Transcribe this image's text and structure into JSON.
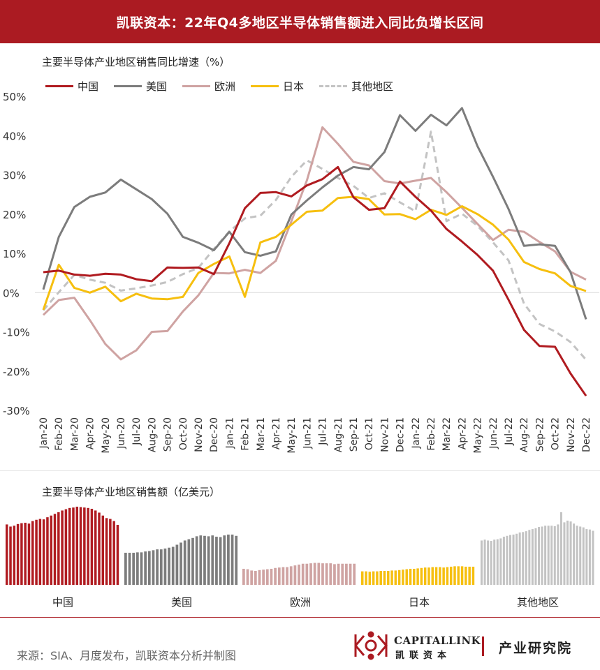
{
  "header": {
    "title": "凯联资本：22年Q4多地区半导体销售额进入同比负增长区间"
  },
  "top_chart": {
    "subtitle": "主要半导体产业地区销售同比增速（%）"
  },
  "bottom_chart": {
    "subtitle": "主要半导体产业地区销售额（亿美元）"
  },
  "footer": {
    "source": "来源：SIA、月度发布，凯联资本分析并制图",
    "logo_en": "CAPITALLINK",
    "logo_cn": "凯联资本",
    "brand_right": "产业研究院"
  },
  "colors": {
    "header_bg": "#ab1b22",
    "china": "#b01b20",
    "usa": "#7c7c7c",
    "europe": "#cfa3a2",
    "japan": "#f6bf0f",
    "others": "#c3c3c3"
  },
  "chart_data": [
    {
      "type": "line",
      "ylim": [
        -30,
        50
      ],
      "yticks": [
        "50%",
        "40%",
        "30%",
        "20%",
        "10%",
        "0%",
        "-10%",
        "-20%",
        "-30%"
      ],
      "ytick_values": [
        50,
        40,
        30,
        20,
        10,
        0,
        -10,
        -20,
        -30
      ],
      "categories": [
        "Jan-20",
        "Feb-20",
        "Mar-20",
        "Apr-20",
        "May-20",
        "Jun-20",
        "Jul-20",
        "Aug-20",
        "Sep-20",
        "Oct-20",
        "Nov-20",
        "Dec-20",
        "Jan-21",
        "Feb-21",
        "Mar-21",
        "Apr-21",
        "May-21",
        "Jun-21",
        "Jul-21",
        "Aug-21",
        "Sep-21",
        "Oct-21",
        "Nov-21",
        "Dec-21",
        "Jan-22",
        "Feb-22",
        "Mar-22",
        "Apr-22",
        "May-22",
        "Jun-22",
        "Jul-22",
        "Aug-22",
        "Sep-22",
        "Oct-22",
        "Nov-22",
        "Dec-22"
      ],
      "grid": "zero-line",
      "legend_position": "top-left",
      "series": [
        {
          "name": "中国",
          "style": "solid",
          "values": [
            5.2,
            5.6,
            4.6,
            4.3,
            4.8,
            4.6,
            3.4,
            2.9,
            6.4,
            6.3,
            6.4,
            4.7,
            12.6,
            21.5,
            25.4,
            25.6,
            24.5,
            27.3,
            28.9,
            32,
            24.3,
            21.1,
            21.5,
            28.3,
            24.4,
            20.9,
            16.2,
            13,
            9.6,
            5.6,
            -1.8,
            -9.5,
            -13.6,
            -13.8,
            -20.6,
            -26.3
          ]
        },
        {
          "name": "美国",
          "style": "solid",
          "values": [
            0.8,
            14.2,
            21.8,
            24.4,
            25.5,
            28.8,
            26.3,
            23.8,
            20.1,
            14.2,
            12.7,
            10.8,
            15.5,
            10.3,
            9.4,
            10.5,
            19.9,
            23.5,
            26.8,
            29.8,
            32,
            31.4,
            35.8,
            45.2,
            41.2,
            45.3,
            42.6,
            47,
            37.3,
            29.5,
            21.3,
            11.9,
            12.3,
            11.9,
            5.2,
            -6.8
          ]
        },
        {
          "name": "欧洲",
          "style": "solid",
          "values": [
            -5.7,
            -1.9,
            -1.3,
            -7,
            -13.1,
            -17,
            -14.7,
            -10,
            -9.8,
            -4.8,
            -0.7,
            5,
            4.9,
            5.8,
            5,
            8.1,
            18.2,
            28.6,
            42.1,
            37.9,
            33.3,
            32.4,
            28.4,
            27.8,
            28.5,
            29.2,
            25.6,
            21.6,
            17.5,
            13.4,
            16,
            15.5,
            12.9,
            10.5,
            5.3,
            3.3
          ]
        },
        {
          "name": "日本",
          "style": "solid",
          "values": [
            -4.4,
            7.1,
            1.2,
            0,
            1.5,
            -2.2,
            -0.3,
            -1.5,
            -1.7,
            -1.1,
            5,
            7.3,
            9.2,
            -1.1,
            12.8,
            14.2,
            17.3,
            20.6,
            20.9,
            24.1,
            24.4,
            23.8,
            19.9,
            20,
            18.7,
            21.1,
            19.8,
            22,
            20,
            17.3,
            13.5,
            7.8,
            6,
            4.9,
            1.7,
            0.4
          ]
        },
        {
          "name": "其他地区",
          "style": "dashed",
          "values": [
            -4.5,
            0.1,
            4.5,
            3.3,
            2.5,
            0.5,
            1.1,
            1.8,
            2.7,
            4.7,
            6.3,
            11.1,
            15.6,
            18.9,
            19.6,
            23.6,
            29.5,
            33.7,
            31.5,
            29.2,
            27.2,
            24.1,
            25.3,
            23,
            20.7,
            41,
            18.2,
            20.1,
            17,
            12.8,
            8.2,
            -2.8,
            -8,
            -9.9,
            -12.6,
            -17.1
          ]
        }
      ]
    },
    {
      "type": "bar",
      "ylim": [
        0,
        185
      ],
      "groups": [
        {
          "name": "中国",
          "values": [
            143,
            138,
            140,
            144,
            146,
            147,
            145,
            151,
            154,
            156,
            155,
            160,
            164,
            168,
            172,
            176,
            179,
            182,
            183,
            185,
            184,
            183,
            182,
            180,
            176,
            171,
            164,
            158,
            156,
            151,
            142
          ]
        },
        {
          "name": "美国",
          "values": [
            76,
            76,
            76,
            77,
            77,
            79,
            80,
            82,
            84,
            84,
            86,
            88,
            90,
            95,
            100,
            105,
            108,
            111,
            115,
            117,
            116,
            115,
            117,
            114,
            113,
            117,
            119,
            119,
            116
          ]
        },
        {
          "name": "欧洲",
          "values": [
            38,
            37,
            34,
            33,
            35,
            36,
            37,
            38,
            40,
            41,
            42,
            42,
            44,
            46,
            48,
            50,
            50,
            51,
            52,
            52,
            51,
            51,
            51,
            49,
            50,
            50,
            50,
            50,
            50
          ]
        },
        {
          "name": "日本",
          "values": [
            32,
            32,
            31,
            32,
            32,
            33,
            33,
            33,
            34,
            34,
            35,
            36,
            37,
            38,
            38,
            39,
            40,
            41,
            41,
            42,
            42,
            42,
            41,
            42,
            43,
            44,
            44,
            44,
            43,
            43,
            43
          ]
        },
        {
          "name": "其他地区",
          "values": [
            105,
            107,
            105,
            104,
            107,
            108,
            110,
            114,
            116,
            118,
            119,
            121,
            124,
            125,
            127,
            130,
            132,
            134,
            137,
            138,
            140,
            140,
            140,
            139,
            143,
            172,
            148,
            152,
            150,
            145,
            140,
            138,
            136,
            132,
            131,
            128
          ]
        }
      ]
    }
  ]
}
